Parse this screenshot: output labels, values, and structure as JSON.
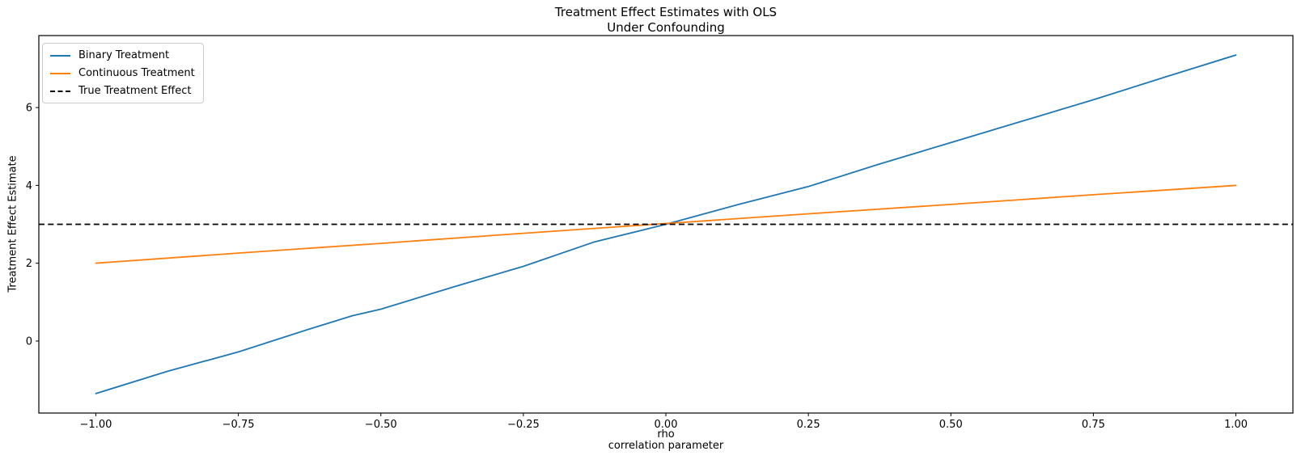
{
  "chart_data": {
    "type": "line",
    "title_lines": [
      "Treatment Effect Estimates with OLS",
      "Under Confounding"
    ],
    "xlabel_lines": [
      "rho",
      "correlation parameter"
    ],
    "ylabel": "Treatment Effect Estimate",
    "xlim": [
      -1.1,
      1.1
    ],
    "ylim": [
      -1.85,
      7.85
    ],
    "grid": false,
    "legend_position": "upper left",
    "frame_color": "#000000",
    "background_color": "#ffffff",
    "xticks": {
      "values": [
        -1.0,
        -0.75,
        -0.5,
        -0.25,
        0.0,
        0.25,
        0.5,
        0.75,
        1.0
      ],
      "labels": [
        "−1.00",
        "−0.75",
        "−0.50",
        "−0.25",
        "0.00",
        "0.25",
        "0.50",
        "0.75",
        "1.00"
      ]
    },
    "yticks": {
      "values": [
        0,
        2,
        4,
        6
      ],
      "labels": [
        "0",
        "2",
        "4",
        "6"
      ]
    },
    "series": [
      {
        "name": "Binary Treatment",
        "color": "#1f77b4",
        "style": "solid",
        "x": [
          -1.0,
          -0.875,
          -0.75,
          -0.625,
          -0.55,
          -0.5,
          -0.375,
          -0.25,
          -0.125,
          -0.05,
          0.0,
          0.125,
          0.25,
          0.375,
          0.5,
          0.625,
          0.75,
          0.875,
          1.0
        ],
        "y": [
          -1.35,
          -0.78,
          -0.28,
          0.31,
          0.65,
          0.82,
          1.38,
          1.92,
          2.55,
          2.82,
          3.0,
          3.5,
          3.97,
          4.55,
          5.1,
          5.65,
          6.2,
          6.78,
          7.35
        ]
      },
      {
        "name": "Continuous Treatment",
        "color": "#ff7f0e",
        "style": "solid",
        "x": [
          -1.0,
          -0.75,
          -0.5,
          -0.25,
          0.0,
          0.25,
          0.5,
          0.75,
          1.0
        ],
        "y": [
          2.0,
          2.26,
          2.51,
          2.77,
          3.02,
          3.27,
          3.51,
          3.76,
          4.0
        ]
      },
      {
        "name": "True Treatment Effect",
        "color": "#000000",
        "style": "dashed",
        "axhline": 3.0
      }
    ]
  }
}
